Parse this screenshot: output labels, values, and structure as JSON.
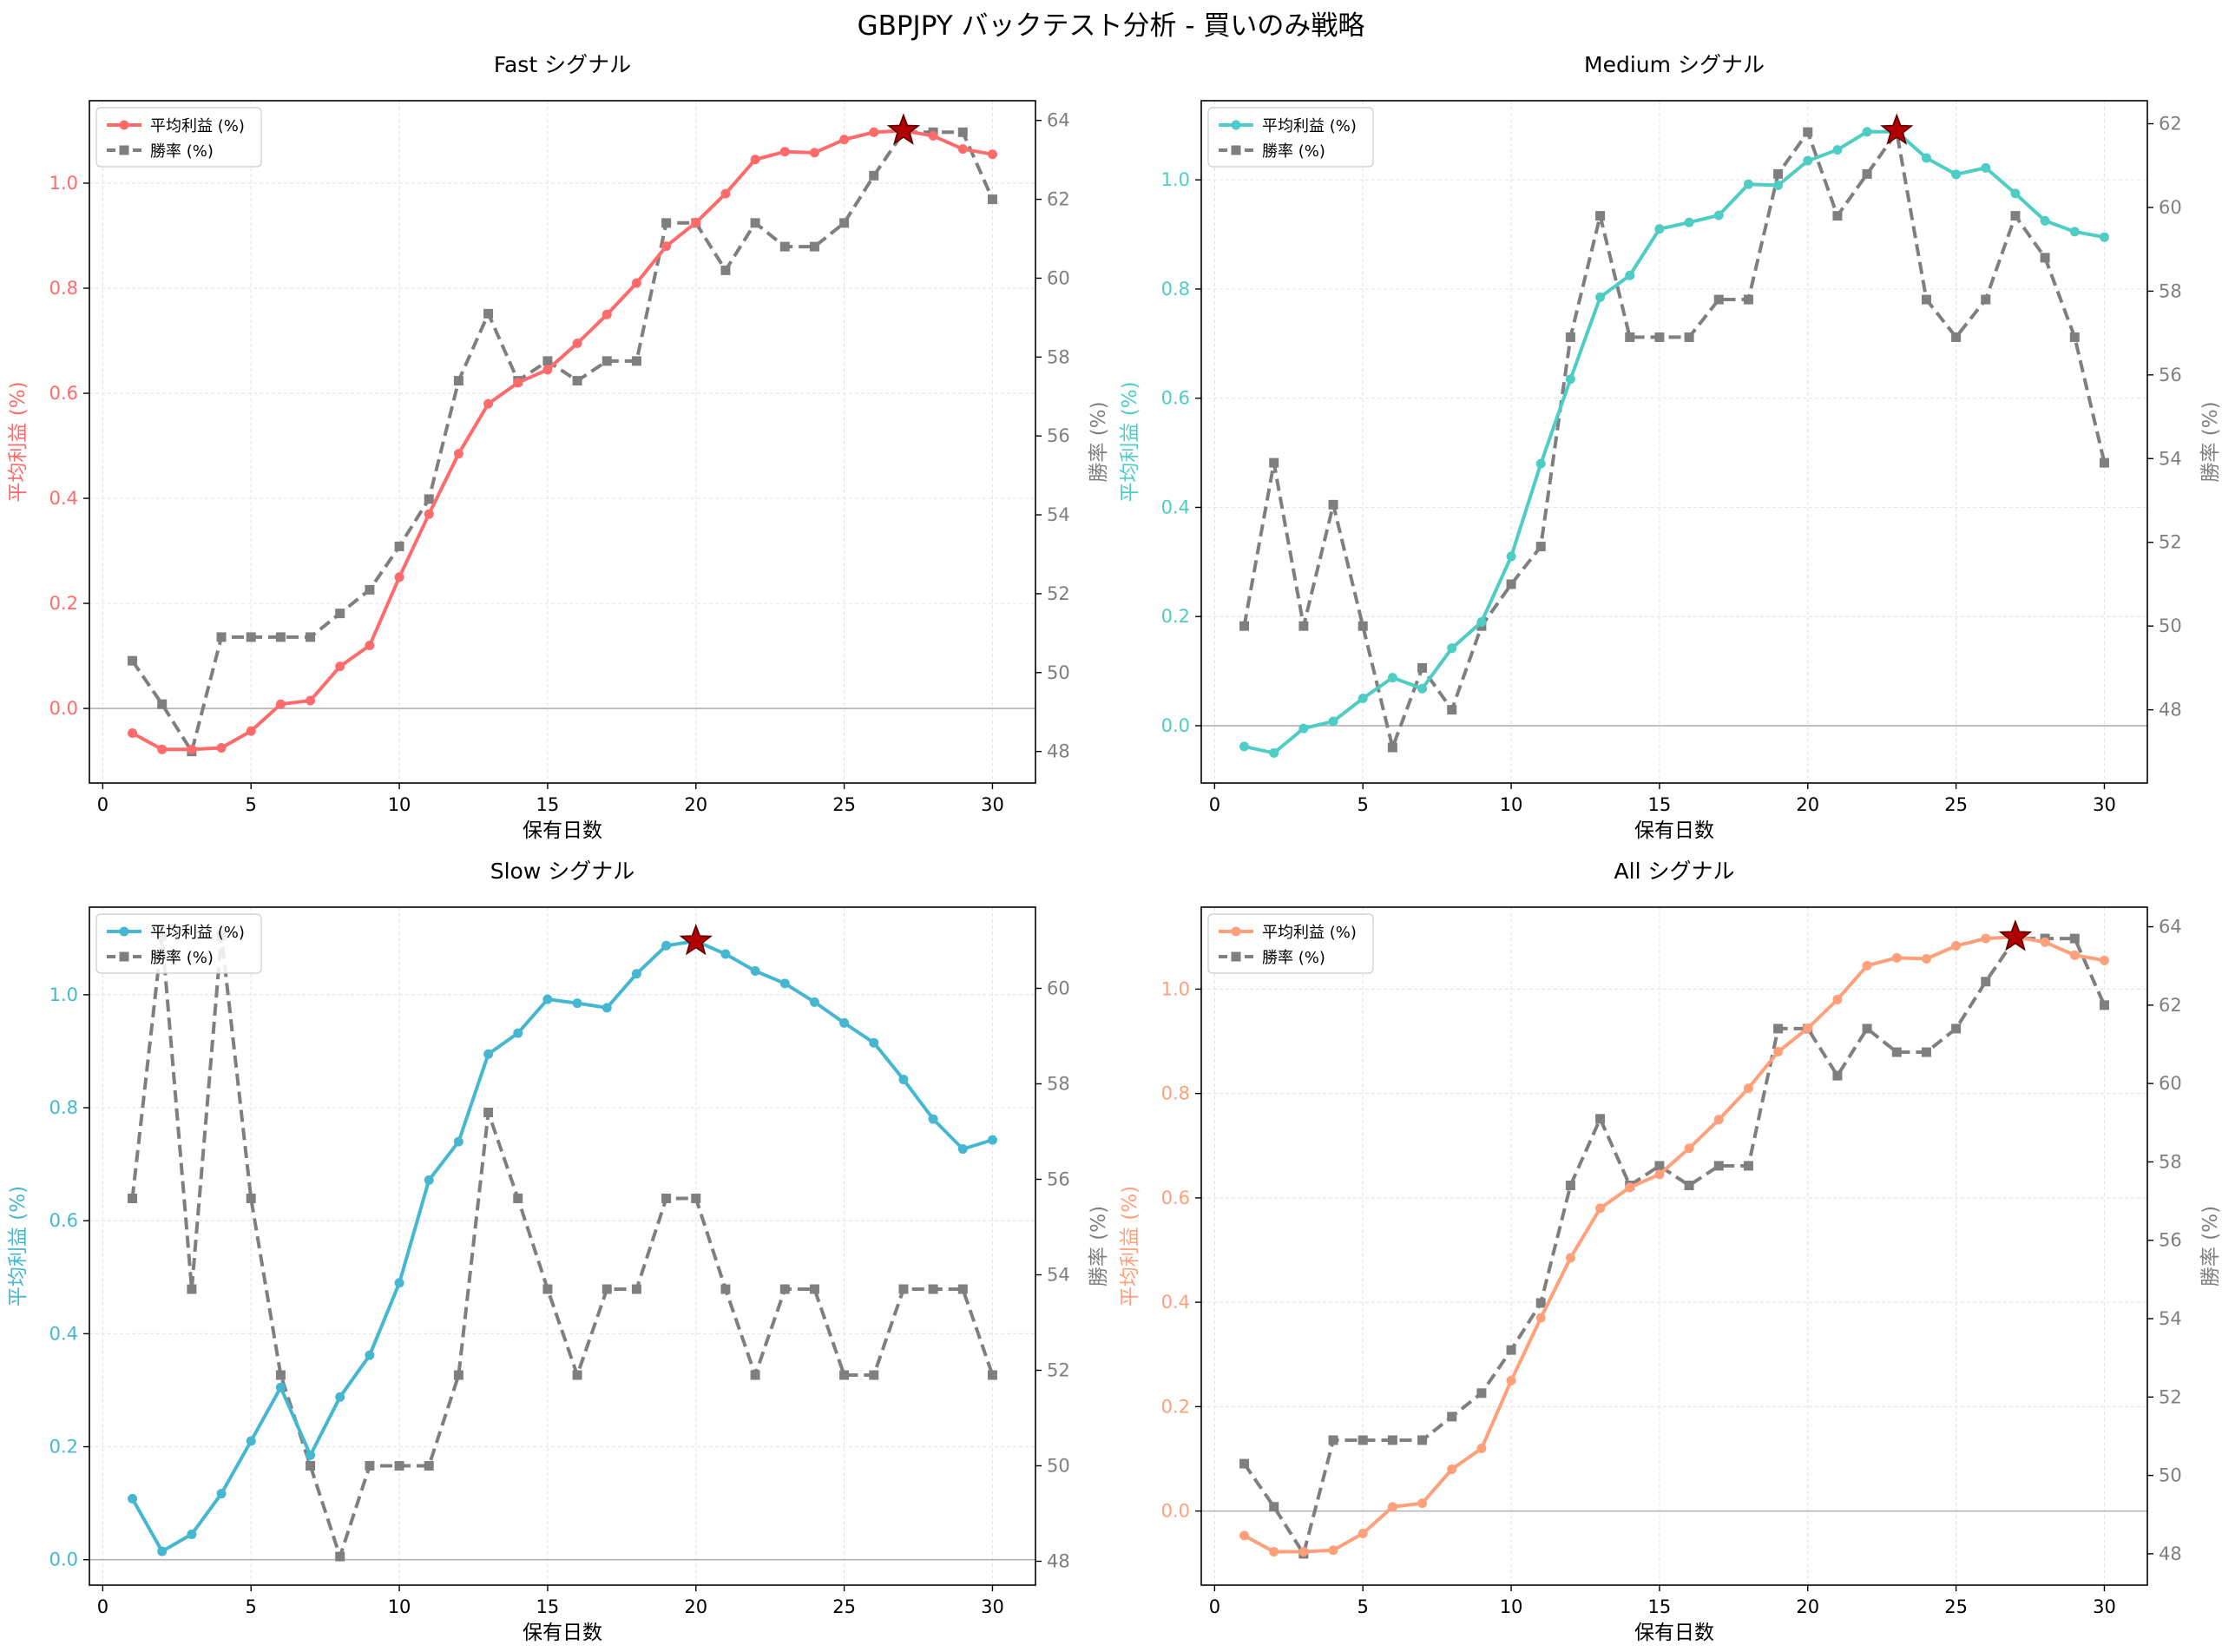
{
  "figure_title": "GBPJPY バックテスト分析 - 買いのみ戦略",
  "chart_data": [
    {
      "type": "line",
      "title": "Fast シグナル",
      "xlabel": "保有日数",
      "ylabel_left": "平均利益 (%)",
      "ylabel_right": "勝率 (%)",
      "color": "#ff6b6b",
      "x": [
        1,
        2,
        3,
        4,
        5,
        6,
        7,
        8,
        9,
        10,
        11,
        12,
        13,
        14,
        15,
        16,
        17,
        18,
        19,
        20,
        21,
        22,
        23,
        24,
        25,
        26,
        27,
        28,
        29,
        30
      ],
      "series": [
        {
          "name": "平均利益 (%)",
          "axis": "left",
          "values": [
            -0.047,
            -0.078,
            -0.078,
            -0.075,
            -0.043,
            0.008,
            0.015,
            0.08,
            0.12,
            0.25,
            0.37,
            0.485,
            0.58,
            0.62,
            0.645,
            0.695,
            0.75,
            0.81,
            0.88,
            0.925,
            0.98,
            1.045,
            1.06,
            1.058,
            1.083,
            1.097,
            1.1,
            1.09,
            1.065,
            1.055
          ]
        },
        {
          "name": "勝率 (%)",
          "axis": "right",
          "values": [
            50.3,
            49.2,
            48.0,
            50.9,
            50.9,
            50.9,
            50.9,
            51.5,
            52.1,
            53.2,
            54.4,
            57.4,
            59.1,
            57.4,
            57.9,
            57.4,
            57.9,
            57.9,
            61.4,
            61.4,
            60.2,
            61.4,
            60.8,
            60.8,
            61.4,
            62.6,
            63.7,
            63.7,
            63.7,
            62.0
          ]
        }
      ],
      "best_x": 27,
      "best_y": 1.1,
      "ylim_left": [
        -0.142,
        1.157
      ],
      "yticks_left": [
        0.0,
        0.2,
        0.4,
        0.6,
        0.8,
        1.0
      ],
      "ylim_right": [
        47.2,
        64.5
      ],
      "yticks_right": [
        48,
        50,
        52,
        54,
        56,
        58,
        60,
        62,
        64
      ],
      "xlim": [
        -0.45,
        31.45
      ],
      "xticks": [
        0,
        5,
        10,
        15,
        20,
        25,
        30
      ],
      "legend": "top-left",
      "grid": true
    },
    {
      "type": "line",
      "title": "Medium シグナル",
      "xlabel": "保有日数",
      "ylabel_left": "平均利益 (%)",
      "ylabel_right": "勝率 (%)",
      "color": "#4ecdc4",
      "x": [
        1,
        2,
        3,
        4,
        5,
        6,
        7,
        8,
        9,
        10,
        11,
        12,
        13,
        14,
        15,
        16,
        17,
        18,
        19,
        20,
        21,
        22,
        23,
        24,
        25,
        26,
        27,
        28,
        29,
        30
      ],
      "series": [
        {
          "name": "平均利益 (%)",
          "axis": "left",
          "values": [
            -0.038,
            -0.05,
            -0.005,
            0.008,
            0.05,
            0.088,
            0.068,
            0.142,
            0.19,
            0.31,
            0.48,
            0.635,
            0.785,
            0.825,
            0.91,
            0.922,
            0.935,
            0.992,
            0.99,
            1.035,
            1.055,
            1.088,
            1.088,
            1.04,
            1.01,
            1.022,
            0.975,
            0.925,
            0.905,
            0.895
          ]
        },
        {
          "name": "勝率 (%)",
          "axis": "right",
          "values": [
            50.0,
            53.9,
            50.0,
            52.9,
            50.0,
            47.1,
            49.0,
            48.0,
            50.0,
            51.0,
            51.9,
            56.9,
            59.8,
            56.9,
            56.9,
            56.9,
            57.8,
            57.8,
            60.8,
            61.8,
            59.8,
            60.8,
            61.8,
            57.8,
            56.9,
            57.8,
            59.8,
            58.8,
            56.9,
            53.9
          ]
        }
      ],
      "best_x": 23,
      "best_y": 1.09,
      "ylim_left": [
        -0.105,
        1.145
      ],
      "yticks_left": [
        0.0,
        0.2,
        0.4,
        0.6,
        0.8,
        1.0
      ],
      "ylim_right": [
        46.25,
        62.55
      ],
      "yticks_right": [
        48,
        50,
        52,
        54,
        56,
        58,
        60,
        62
      ],
      "xlim": [
        -0.45,
        31.45
      ],
      "xticks": [
        0,
        5,
        10,
        15,
        20,
        25,
        30
      ],
      "legend": "top-left",
      "grid": true
    },
    {
      "type": "line",
      "title": "Slow シグナル",
      "xlabel": "保有日数",
      "ylabel_left": "平均利益 (%)",
      "ylabel_right": "勝率 (%)",
      "color": "#45b7d1",
      "x": [
        1,
        2,
        3,
        4,
        5,
        6,
        7,
        8,
        9,
        10,
        11,
        12,
        13,
        14,
        15,
        16,
        17,
        18,
        19,
        20,
        21,
        22,
        23,
        24,
        25,
        26,
        27,
        28,
        29,
        30
      ],
      "series": [
        {
          "name": "平均利益 (%)",
          "axis": "left",
          "values": [
            0.108,
            0.015,
            0.045,
            0.117,
            0.21,
            0.305,
            0.185,
            0.288,
            0.362,
            0.49,
            0.672,
            0.74,
            0.895,
            0.932,
            0.992,
            0.985,
            0.977,
            1.037,
            1.087,
            1.095,
            1.072,
            1.042,
            1.02,
            0.987,
            0.95,
            0.915,
            0.85,
            0.78,
            0.727,
            0.743
          ]
        },
        {
          "name": "勝率 (%)",
          "axis": "right",
          "values": [
            55.6,
            61.1,
            53.7,
            61.1,
            55.6,
            51.9,
            50.0,
            48.1,
            50.0,
            50.0,
            50.0,
            51.9,
            57.4,
            55.6,
            53.7,
            51.9,
            53.7,
            53.7,
            55.6,
            55.6,
            53.7,
            51.9,
            53.7,
            53.7,
            51.9,
            51.9,
            53.7,
            53.7,
            53.7,
            51.9
          ]
        }
      ],
      "best_x": 20,
      "best_y": 1.095,
      "ylim_left": [
        -0.045,
        1.155
      ],
      "yticks_left": [
        0.0,
        0.2,
        0.4,
        0.6,
        0.8,
        1.0
      ],
      "ylim_right": [
        47.5,
        61.7
      ],
      "yticks_right": [
        48,
        50,
        52,
        54,
        56,
        58,
        60
      ],
      "xlim": [
        -0.45,
        31.45
      ],
      "xticks": [
        0,
        5,
        10,
        15,
        20,
        25,
        30
      ],
      "legend": "top-left",
      "grid": true
    },
    {
      "type": "line",
      "title": "All シグナル",
      "xlabel": "保有日数",
      "ylabel_left": "平均利益 (%)",
      "ylabel_right": "勝率 (%)",
      "color": "#ffa07a",
      "x": [
        1,
        2,
        3,
        4,
        5,
        6,
        7,
        8,
        9,
        10,
        11,
        12,
        13,
        14,
        15,
        16,
        17,
        18,
        19,
        20,
        21,
        22,
        23,
        24,
        25,
        26,
        27,
        28,
        29,
        30
      ],
      "series": [
        {
          "name": "平均利益 (%)",
          "axis": "left",
          "values": [
            -0.047,
            -0.078,
            -0.078,
            -0.075,
            -0.043,
            0.008,
            0.015,
            0.08,
            0.12,
            0.25,
            0.37,
            0.485,
            0.58,
            0.62,
            0.645,
            0.695,
            0.75,
            0.81,
            0.88,
            0.925,
            0.98,
            1.045,
            1.06,
            1.058,
            1.083,
            1.097,
            1.1,
            1.09,
            1.065,
            1.055
          ]
        },
        {
          "name": "勝率 (%)",
          "axis": "right",
          "values": [
            50.3,
            49.2,
            48.0,
            50.9,
            50.9,
            50.9,
            50.9,
            51.5,
            52.1,
            53.2,
            54.4,
            57.4,
            59.1,
            57.4,
            57.9,
            57.4,
            57.9,
            57.9,
            61.4,
            61.4,
            60.2,
            61.4,
            60.8,
            60.8,
            61.4,
            62.6,
            63.7,
            63.7,
            63.7,
            62.0
          ]
        }
      ],
      "best_x": 27,
      "best_y": 1.1,
      "ylim_left": [
        -0.142,
        1.157
      ],
      "yticks_left": [
        0.0,
        0.2,
        0.4,
        0.6,
        0.8,
        1.0
      ],
      "ylim_right": [
        47.2,
        64.5
      ],
      "yticks_right": [
        48,
        50,
        52,
        54,
        56,
        58,
        60,
        62,
        64
      ],
      "xlim": [
        -0.45,
        31.45
      ],
      "xticks": [
        0,
        5,
        10,
        15,
        20,
        25,
        30
      ],
      "legend": "top-left",
      "grid": true
    }
  ]
}
